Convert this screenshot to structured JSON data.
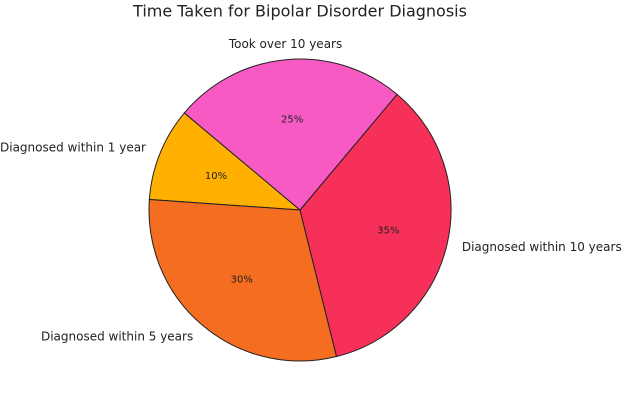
{
  "chart_data": {
    "type": "pie",
    "title": "Time Taken for Bipolar Disorder Diagnosis",
    "categories": [
      "Diagnosed within 1 year",
      "Diagnosed within 5 years",
      "Diagnosed within 10 years",
      "Took over 10 years"
    ],
    "values": [
      10,
      30,
      35,
      25
    ],
    "value_labels": [
      "10%",
      "30%",
      "35%",
      "25%"
    ],
    "colors": [
      "#ffb000",
      "#f46d20",
      "#f7305a",
      "#f75bc3"
    ]
  }
}
